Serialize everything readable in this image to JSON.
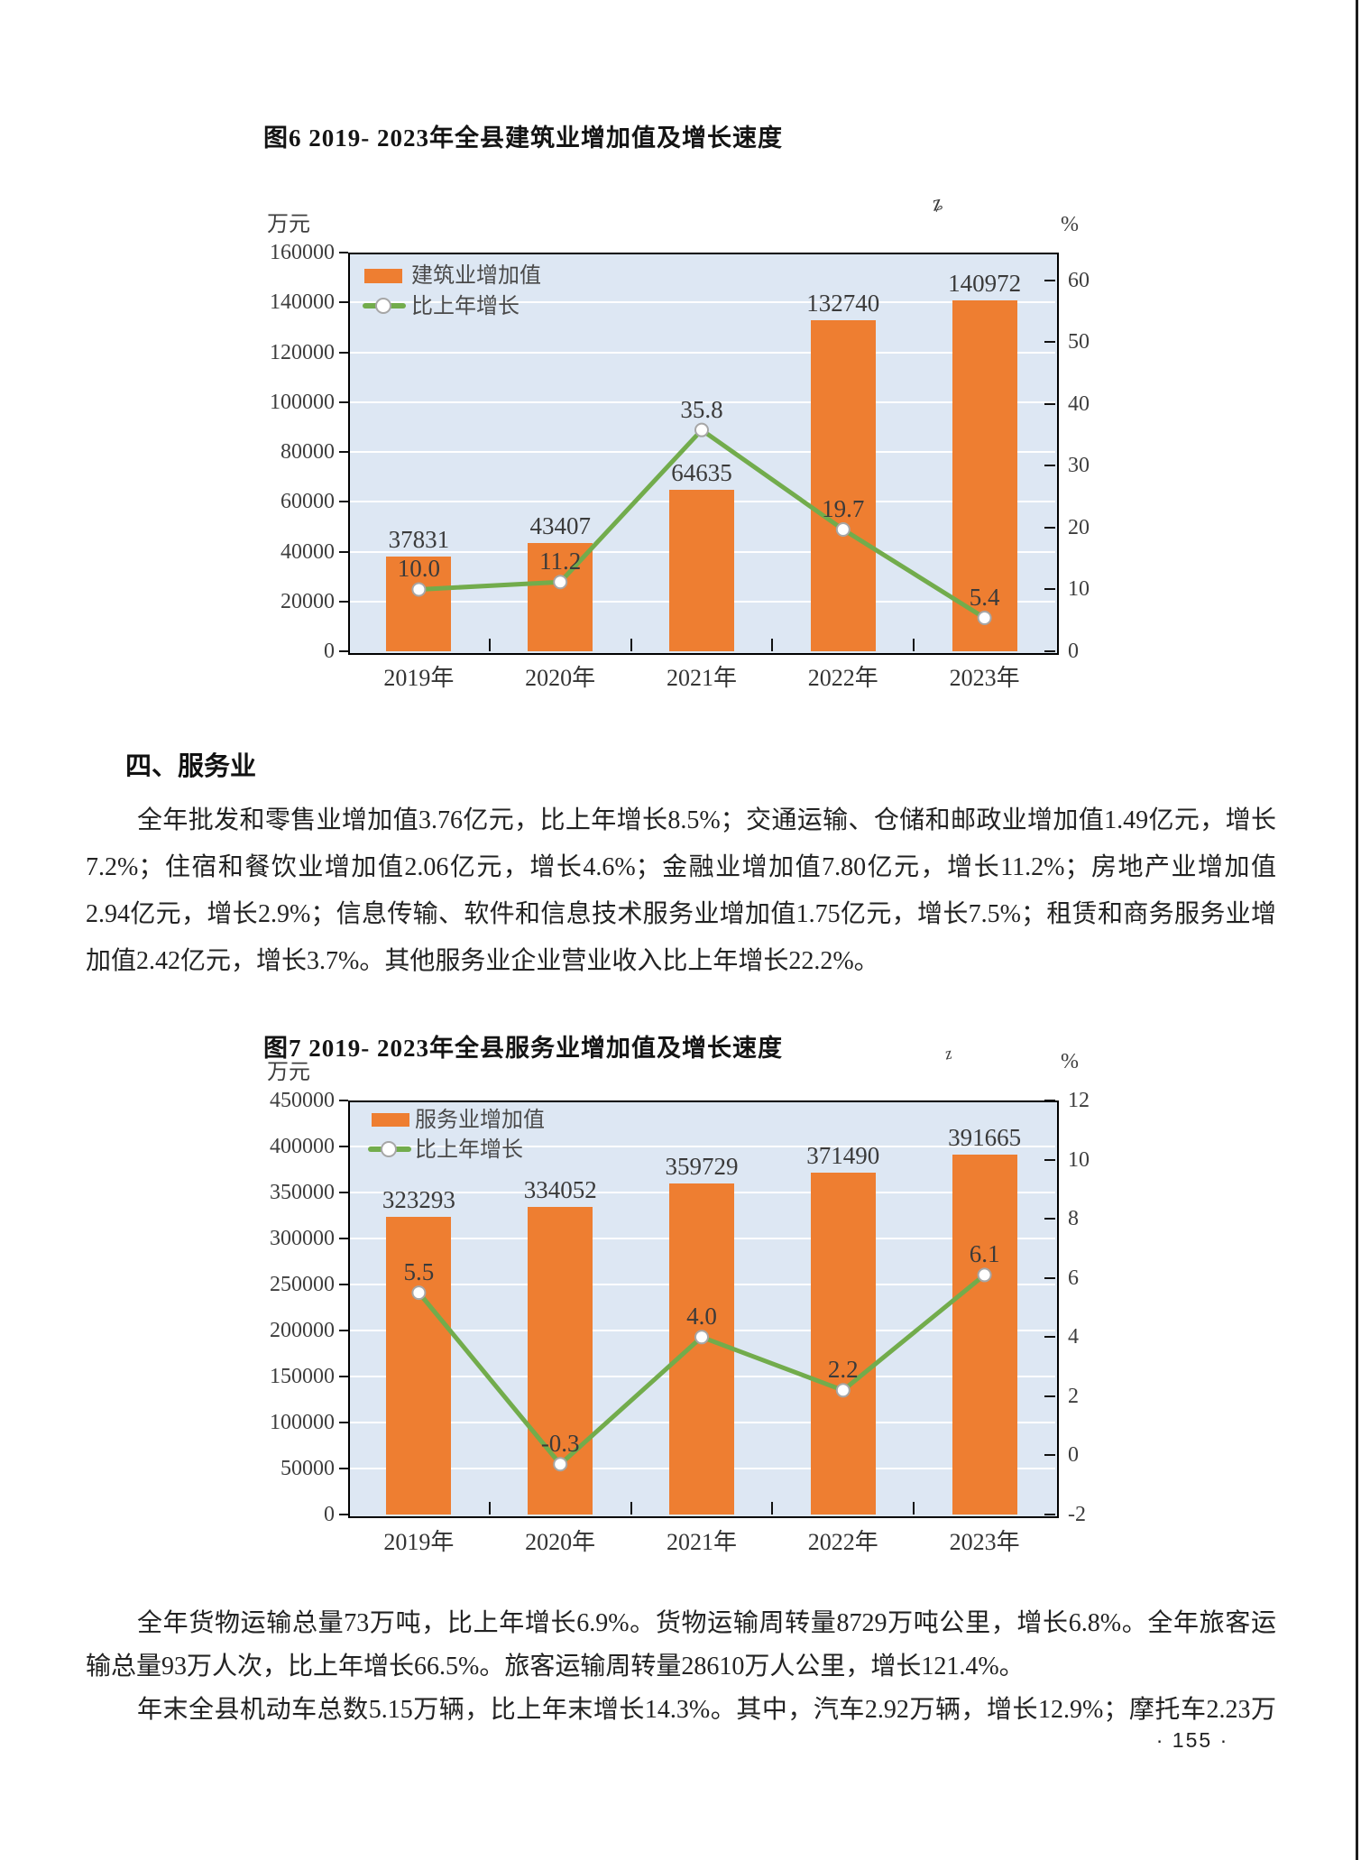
{
  "page": {
    "number": "·  155  ·"
  },
  "section": {
    "heading": "四、服务业"
  },
  "paragraph1": {
    "lines": [
      "全年批发和零售业增加值3.76亿元，比上年增长8.5%；交通运输、仓储和邮政业增加值1.49亿元，增长",
      "7.2%；住宿和餐饮业增加值2.06亿元，增长4.6%；金融业增加值7.80亿元，增长11.2%；房地产业增加值",
      "2.94亿元，增长2.9%；信息传输、软件和信息技术服务业增加值1.75亿元，增长7.5%；租赁和商务服务业增",
      "加值2.42亿元，增长3.7%。其他服务业企业营业收入比上年增长22.2%。"
    ]
  },
  "paragraph2": {
    "lines": [
      "全年货物运输总量73万吨，比上年增长6.9%。货物运输周转量8729万吨公里，增长6.8%。全年旅客运",
      "输总量93万人次，比上年增长66.5%。旅客运输周转量28610万人公里，增长121.4%。"
    ]
  },
  "paragraph3": {
    "lines": [
      "年末全县机动车总数5.15万辆，比上年末增长14.3%。其中，汽车2.92万辆，增长12.9%；摩托车2.23万"
    ]
  },
  "chart_data": [
    {
      "type": "bar+line",
      "title": "图6  2019- 2023年全县建筑业增加值及增长速度",
      "categories": [
        "2019年",
        "2020年",
        "2021年",
        "2022年",
        "2023年"
      ],
      "series": [
        {
          "name": "建筑业增加值",
          "type": "bar",
          "axis": "left",
          "values": [
            37831,
            43407,
            64635,
            132740,
            140972
          ],
          "labels": [
            "37831",
            "43407",
            "64635",
            "132740",
            "140972"
          ]
        },
        {
          "name": "比上年增长",
          "type": "line",
          "axis": "right",
          "values": [
            10.0,
            11.2,
            35.8,
            19.7,
            5.4
          ],
          "labels": [
            "10.0",
            "11.2",
            "35.8",
            "19.7",
            "5.4"
          ]
        }
      ],
      "left_axis": {
        "unit": "万元",
        "min": 0,
        "max": 160000,
        "ticks": [
          "160000",
          "140000",
          "120000",
          "100000",
          "80000",
          "60000",
          "40000",
          "20000",
          "0"
        ]
      },
      "right_axis": {
        "unit": "%",
        "min": 0,
        "max": 64.5,
        "ticks": [
          "60",
          "50",
          "40",
          "30",
          "20",
          "10",
          "0"
        ]
      },
      "legend_position": "top-left",
      "grid": true,
      "artifact_glyph": "ʑ",
      "colors": {
        "bar": "#ee7e31",
        "line": "#72ac4c",
        "plot_bg": "#dde7f3",
        "grid": "#ffffff"
      }
    },
    {
      "type": "bar+line",
      "title": "图7  2019- 2023年全县服务业增加值及增长速度",
      "categories": [
        "2019年",
        "2020年",
        "2021年",
        "2022年",
        "2023年"
      ],
      "series": [
        {
          "name": "服务业增加值",
          "type": "bar",
          "axis": "left",
          "values": [
            323293,
            334052,
            359729,
            371490,
            391665
          ],
          "labels": [
            "323293",
            "334052",
            "359729",
            "371490",
            "391665"
          ]
        },
        {
          "name": "比上年增长",
          "type": "line",
          "axis": "right",
          "values": [
            5.5,
            -0.3,
            4.0,
            2.2,
            6.1
          ],
          "labels": [
            "5.5",
            "-0.3",
            "4.0",
            "2.2",
            "6.1"
          ]
        }
      ],
      "left_axis": {
        "unit": "万元",
        "min": 0,
        "max": 450000,
        "ticks": [
          "450000",
          "400000",
          "350000",
          "300000",
          "250000",
          "200000",
          "150000",
          "100000",
          "50000",
          "0"
        ]
      },
      "right_axis": {
        "unit": "%",
        "min": -2,
        "max": 12,
        "ticks": [
          "12",
          "10",
          "8",
          "6",
          "4",
          "2",
          "0",
          "-2"
        ]
      },
      "legend_position": "top-left",
      "grid": true,
      "artifact_glyph": "z",
      "colors": {
        "bar": "#ee7e31",
        "line": "#72ac4c",
        "plot_bg": "#dde7f3",
        "grid": "#ffffff"
      }
    }
  ]
}
